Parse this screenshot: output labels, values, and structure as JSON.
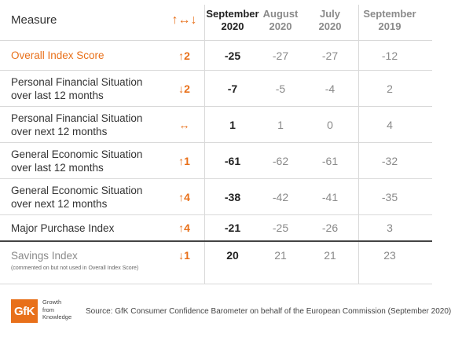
{
  "header": {
    "measure": "Measure",
    "change_icon": "↑↔↓",
    "cols": [
      {
        "line1": "September",
        "line2": "2020"
      },
      {
        "line1": "August",
        "line2": "2020"
      },
      {
        "line1": "July",
        "line2": "2020"
      },
      {
        "line1": "September",
        "line2": "2019"
      }
    ]
  },
  "rows": [
    {
      "measure_l1": "Overall Index Score",
      "measure_l2": "",
      "arrow": "↑",
      "change": "2",
      "sep20": "-25",
      "aug20": "-27",
      "jul20": "-27",
      "sep19": "-12"
    },
    {
      "measure_l1": "Personal Financial Situation",
      "measure_l2": "over last 12 months",
      "arrow": "↓",
      "change": "2",
      "sep20": "-7",
      "aug20": "-5",
      "jul20": "-4",
      "sep19": "2"
    },
    {
      "measure_l1": "Personal Financial Situation",
      "measure_l2": "over next 12 months",
      "arrow": "↔",
      "change": "",
      "sep20": "1",
      "aug20": "1",
      "jul20": "0",
      "sep19": "4"
    },
    {
      "measure_l1": "General Economic Situation",
      "measure_l2": "over last 12 months",
      "arrow": "↑",
      "change": "1",
      "sep20": "-61",
      "aug20": "-62",
      "jul20": "-61",
      "sep19": "-32"
    },
    {
      "measure_l1": "General Economic Situation",
      "measure_l2": "over next 12 months",
      "arrow": "↑",
      "change": "4",
      "sep20": "-38",
      "aug20": "-42",
      "jul20": "-41",
      "sep19": "-35"
    },
    {
      "measure_l1": "Major Purchase Index",
      "measure_l2": "",
      "arrow": "↑",
      "change": "4",
      "sep20": "-21",
      "aug20": "-25",
      "jul20": "-26",
      "sep19": "3"
    },
    {
      "measure_l1": "Savings Index",
      "measure_l2": "(commented on but not used in Overall Index Score)",
      "arrow": "↓",
      "change": "1",
      "sep20": "20",
      "aug20": "21",
      "jul20": "21",
      "sep19": "23"
    }
  ],
  "footer": {
    "logo": "GfK",
    "tagline": [
      "Growth",
      "from",
      "Knowledge"
    ],
    "source": "Source: GfK Consumer Confidence Barometer on behalf of the European Commission (September 2020)"
  },
  "colors": {
    "accent": "#e8701a",
    "text": "#333333",
    "muted": "#8a8a8a",
    "rule": "#d9d9d9"
  }
}
